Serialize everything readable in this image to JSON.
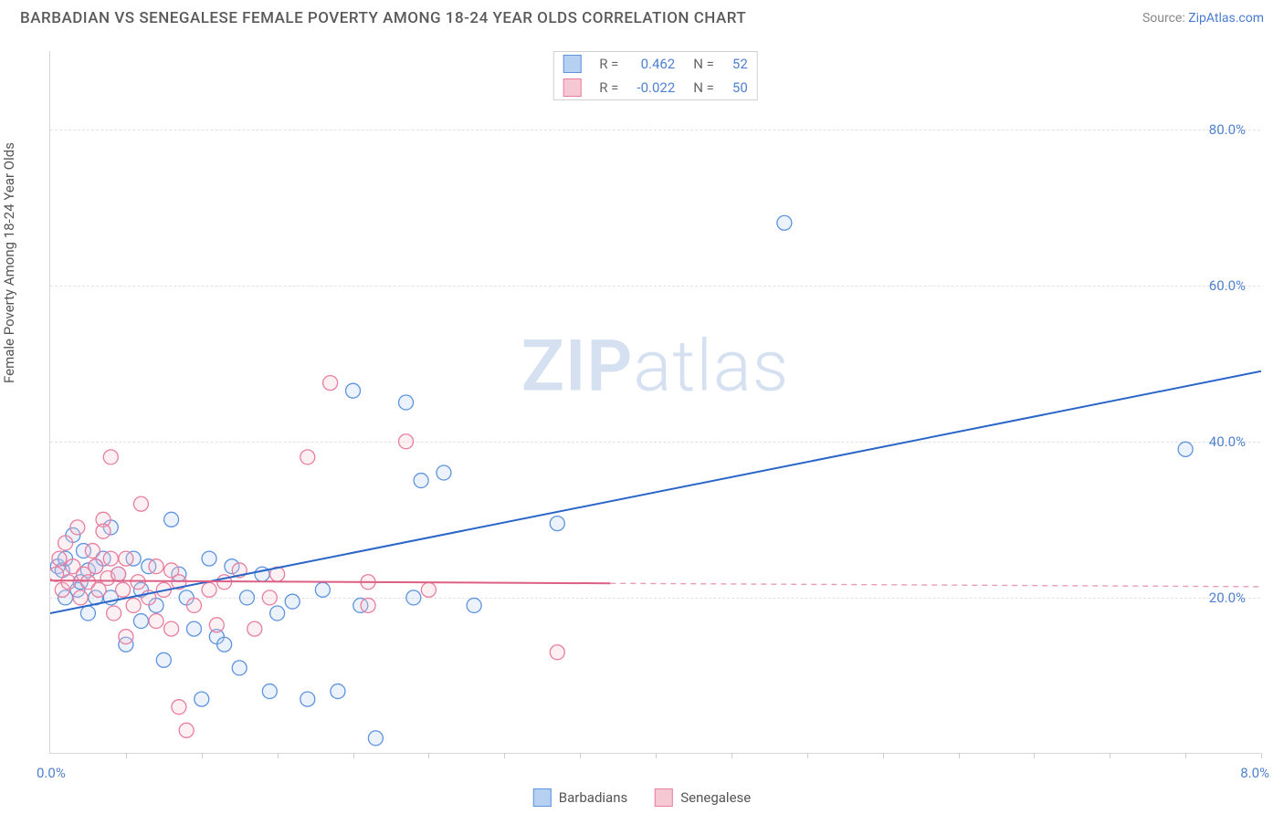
{
  "header": {
    "title": "BARBADIAN VS SENEGALESE FEMALE POVERTY AMONG 18-24 YEAR OLDS CORRELATION CHART",
    "source_prefix": "Source: ",
    "source_link": "ZipAtlas.com"
  },
  "chart": {
    "type": "scatter",
    "y_axis_label": "Female Poverty Among 18-24 Year Olds",
    "xlim": [
      0,
      8
    ],
    "ylim": [
      0,
      90
    ],
    "x_origin_label": "0.0%",
    "x_max_label": "8.0%",
    "y_ticks": [
      20,
      40,
      60,
      80
    ],
    "y_tick_labels": [
      "20.0%",
      "40.0%",
      "60.0%",
      "80.0%"
    ],
    "x_minor_ticks": [
      0.5,
      1,
      1.5,
      2,
      2.5,
      3,
      3.5,
      4,
      4.5,
      5,
      5.5,
      6,
      6.5,
      7,
      7.5,
      8
    ],
    "background_color": "#ffffff",
    "grid_color": "#e2e2e2",
    "axis_color": "#d6d6d6",
    "axis_label_color": "#4f81cf",
    "marker_radius": 8,
    "marker_stroke_width": 1.3,
    "marker_fill_opacity": 0.28,
    "trend_line_width": 2,
    "watermark": "ZIPatlas",
    "series": [
      {
        "name": "Barbadians",
        "color_fill": "#b6d0f2",
        "color_stroke": "#5e93de",
        "trend_color": "#2a66c8",
        "trend_solid_to_x": 8.0,
        "trend": {
          "x1": 0,
          "y1": 18,
          "x2": 8,
          "y2": 49
        },
        "R": "0.462",
        "N": "52",
        "points": [
          [
            0.05,
            24
          ],
          [
            0.08,
            23.5
          ],
          [
            0.1,
            25
          ],
          [
            0.1,
            20
          ],
          [
            0.15,
            28
          ],
          [
            0.18,
            21
          ],
          [
            0.2,
            22
          ],
          [
            0.22,
            26
          ],
          [
            0.25,
            23.5
          ],
          [
            0.25,
            18
          ],
          [
            0.3,
            20
          ],
          [
            0.3,
            24
          ],
          [
            0.35,
            25
          ],
          [
            0.4,
            29
          ],
          [
            0.4,
            20
          ],
          [
            0.45,
            23
          ],
          [
            0.5,
            14
          ],
          [
            0.55,
            25
          ],
          [
            0.6,
            21
          ],
          [
            0.6,
            17
          ],
          [
            0.65,
            24
          ],
          [
            0.7,
            19
          ],
          [
            0.75,
            12
          ],
          [
            0.8,
            30
          ],
          [
            0.85,
            23
          ],
          [
            0.9,
            20
          ],
          [
            0.95,
            16
          ],
          [
            1.0,
            7
          ],
          [
            1.05,
            25
          ],
          [
            1.1,
            15
          ],
          [
            1.15,
            14
          ],
          [
            1.2,
            24
          ],
          [
            1.25,
            11
          ],
          [
            1.3,
            20
          ],
          [
            1.4,
            23
          ],
          [
            1.45,
            8
          ],
          [
            1.5,
            18
          ],
          [
            1.6,
            19.5
          ],
          [
            1.7,
            7
          ],
          [
            1.8,
            21
          ],
          [
            1.9,
            8
          ],
          [
            2.0,
            46.5
          ],
          [
            2.05,
            19
          ],
          [
            2.15,
            2
          ],
          [
            2.35,
            45
          ],
          [
            2.4,
            20
          ],
          [
            2.45,
            35
          ],
          [
            2.6,
            36
          ],
          [
            2.8,
            19
          ],
          [
            3.35,
            29.5
          ],
          [
            4.85,
            68
          ],
          [
            7.5,
            39
          ]
        ]
      },
      {
        "name": "Senegalese",
        "color_fill": "#f6c8d4",
        "color_stroke": "#e87ea0",
        "trend_color": "#dc5f86",
        "trend_solid_to_x": 3.7,
        "trend": {
          "x1": 0,
          "y1": 22.2,
          "x2": 8,
          "y2": 21.4
        },
        "R": "-0.022",
        "N": "50",
        "points": [
          [
            0.04,
            23
          ],
          [
            0.06,
            25
          ],
          [
            0.08,
            21
          ],
          [
            0.1,
            27
          ],
          [
            0.12,
            22
          ],
          [
            0.15,
            24
          ],
          [
            0.18,
            29
          ],
          [
            0.2,
            20
          ],
          [
            0.22,
            23
          ],
          [
            0.25,
            22
          ],
          [
            0.28,
            26
          ],
          [
            0.3,
            24
          ],
          [
            0.32,
            21
          ],
          [
            0.35,
            30
          ],
          [
            0.35,
            28.5
          ],
          [
            0.38,
            22.5
          ],
          [
            0.4,
            25
          ],
          [
            0.4,
            38
          ],
          [
            0.42,
            18
          ],
          [
            0.45,
            23
          ],
          [
            0.48,
            21
          ],
          [
            0.5,
            25
          ],
          [
            0.5,
            15
          ],
          [
            0.55,
            19
          ],
          [
            0.58,
            22
          ],
          [
            0.6,
            32
          ],
          [
            0.65,
            20
          ],
          [
            0.7,
            24
          ],
          [
            0.7,
            17
          ],
          [
            0.75,
            21
          ],
          [
            0.8,
            23.5
          ],
          [
            0.8,
            16
          ],
          [
            0.85,
            22
          ],
          [
            0.85,
            6
          ],
          [
            0.9,
            3
          ],
          [
            0.95,
            19
          ],
          [
            1.05,
            21
          ],
          [
            1.1,
            16.5
          ],
          [
            1.15,
            22
          ],
          [
            1.25,
            23.5
          ],
          [
            1.35,
            16
          ],
          [
            1.45,
            20
          ],
          [
            1.5,
            23
          ],
          [
            1.7,
            38
          ],
          [
            1.85,
            47.5
          ],
          [
            2.1,
            22
          ],
          [
            2.1,
            19
          ],
          [
            2.35,
            40
          ],
          [
            2.5,
            21
          ],
          [
            3.35,
            13
          ]
        ]
      }
    ],
    "legend_bottom": [
      {
        "label": "Barbadians",
        "fill": "#b6d0f2",
        "stroke": "#5e93de"
      },
      {
        "label": "Senegalese",
        "fill": "#f6c8d4",
        "stroke": "#e87ea0"
      }
    ]
  }
}
